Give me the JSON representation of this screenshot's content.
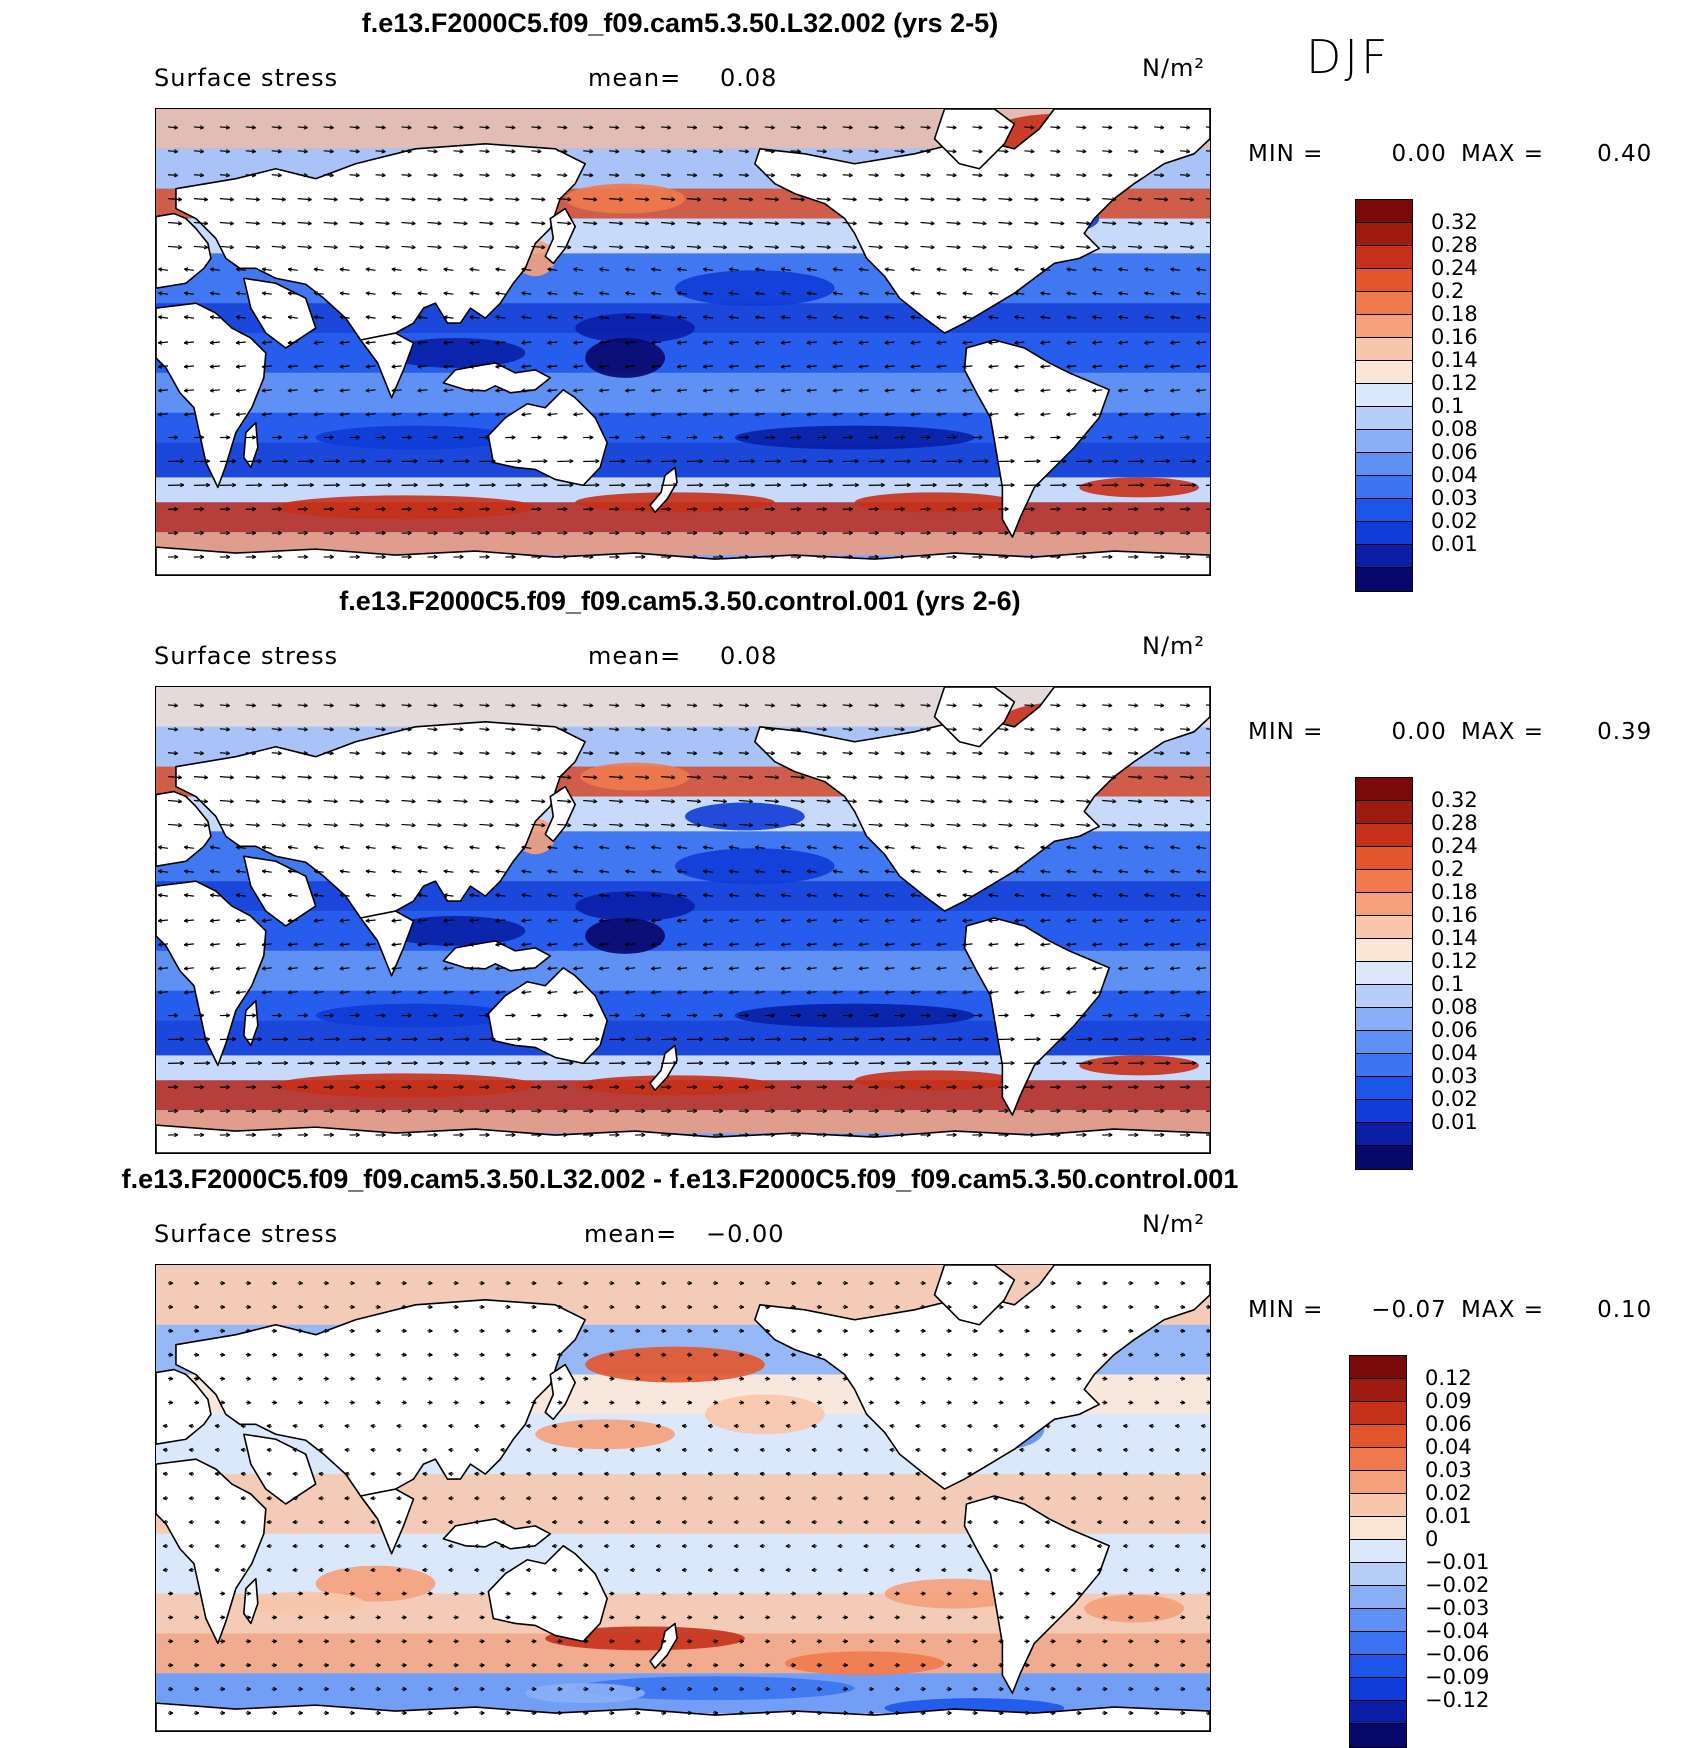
{
  "figure": {
    "season": "DJF",
    "colors": {
      "scale": [
        "#08086b",
        "#0a1fa6",
        "#0f3bd6",
        "#1c55ea",
        "#3c74f0",
        "#5f90f3",
        "#8aaff6",
        "#b6cdf8",
        "#dbe7fb",
        "#fbe6d6",
        "#f8c6aa",
        "#f5a07a",
        "#f07a4d",
        "#e3552a",
        "#c5301a",
        "#9e1b10",
        "#7a0a0a"
      ],
      "land": "#ffffff",
      "coast": "#000000"
    }
  },
  "panels": [
    {
      "title": "f.e13.F2000C5.f09_f09.cam5.3.50.L32.002 (yrs 2-5)",
      "variable": "Surface stress",
      "mean_label": "mean=",
      "mean_value": "0.08",
      "units": "N/m²",
      "min_label": "MIN =",
      "min_value": "0.00",
      "max_label": "MAX =",
      "max_value": "0.40",
      "colorbar_labels": [
        "0.32",
        "0.28",
        "0.24",
        "0.2",
        "0.18",
        "0.16",
        "0.14",
        "0.12",
        "0.1",
        "0.08",
        "0.06",
        "0.04",
        "0.03",
        "0.02",
        "0.01"
      ]
    },
    {
      "title": "f.e13.F2000C5.f09_f09.cam5.3.50.control.001 (yrs 2-6)",
      "variable": "Surface stress",
      "mean_label": "mean=",
      "mean_value": "0.08",
      "units": "N/m²",
      "min_label": "MIN =",
      "min_value": "0.00",
      "max_label": "MAX =",
      "max_value": "0.39",
      "colorbar_labels": [
        "0.32",
        "0.28",
        "0.24",
        "0.2",
        "0.18",
        "0.16",
        "0.14",
        "0.12",
        "0.1",
        "0.08",
        "0.06",
        "0.04",
        "0.03",
        "0.02",
        "0.01"
      ]
    },
    {
      "title": "f.e13.F2000C5.f09_f09.cam5.3.50.L32.002 - f.e13.F2000C5.f09_f09.cam5.3.50.control.001",
      "variable": "Surface stress",
      "mean_label": "mean=",
      "mean_value": "−0.00",
      "units": "N/m²",
      "min_label": "MIN =",
      "min_value": "−0.07",
      "max_label": "MAX =",
      "max_value": "0.10",
      "colorbar_labels": [
        "0.12",
        "0.09",
        "0.06",
        "0.04",
        "0.03",
        "0.02",
        "0.01",
        "0",
        "−0.01",
        "−0.02",
        "−0.03",
        "−0.04",
        "−0.06",
        "−0.09",
        "−0.12"
      ]
    }
  ]
}
